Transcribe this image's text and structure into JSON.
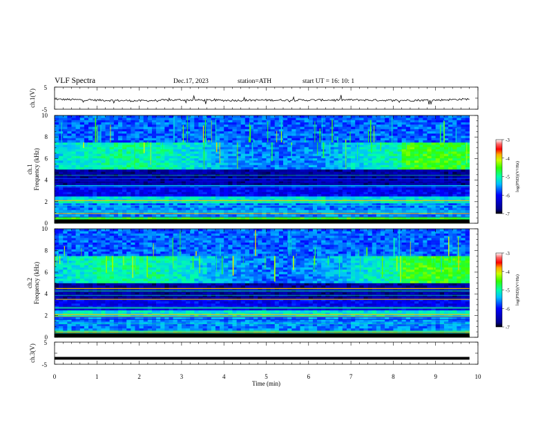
{
  "header": {
    "title": "VLF  Spectra",
    "date": "Dec.17, 2023",
    "station": "station=ATH",
    "start": "start  UT  =    16: 10: 1"
  },
  "colorbar": {
    "label": "log(PSD)(V²/Hz)",
    "ticks": [
      "-3",
      "-4",
      "-5",
      "-6",
      "-7"
    ]
  },
  "chart_data": [
    {
      "type": "line",
      "panel": "ch1-waveform",
      "ylabel": "ch.1(V)",
      "ylim": [
        -5,
        5
      ],
      "yticks": [
        "5",
        "-5"
      ],
      "x": [
        0,
        1,
        2,
        3,
        4,
        5,
        6,
        7,
        8,
        9,
        9.8
      ],
      "values": [
        -0.5,
        -0.9,
        -1.2,
        -0.8,
        -1.0,
        -0.9,
        -0.9,
        -0.8,
        -1.0,
        -0.9,
        -0.4
      ]
    },
    {
      "type": "heatmap",
      "panel": "ch1-spectrogram",
      "ylabel": "ch.1\nFrequency  (kHz)",
      "ylim": [
        0,
        10
      ],
      "yticks": [
        "10",
        "8",
        "6",
        "4",
        "2",
        "0"
      ],
      "zlabel": "log(PSD)(V²/Hz)",
      "zlim": [
        -7,
        -3
      ],
      "tonal_lines_khz": [
        2.1,
        0.9
      ]
    },
    {
      "type": "heatmap",
      "panel": "ch2-spectrogram",
      "ylabel": "ch.2\nFrequency  (kHz)",
      "ylim": [
        0,
        10
      ],
      "yticks": [
        "10",
        "8",
        "6",
        "4",
        "2",
        "0"
      ],
      "zlabel": "log(PSD)(V²/Hz)",
      "zlim": [
        -7,
        -3
      ],
      "tonal_lines_khz": [
        4.5,
        3.5,
        2.1,
        1.9,
        0.5
      ]
    },
    {
      "type": "line",
      "panel": "ch3-waveform",
      "ylabel": "ch.3(V)",
      "ylim": [
        -5,
        5
      ],
      "yticks": [
        "5",
        "-5"
      ],
      "x": [
        0,
        9.8
      ],
      "values": [
        -2.3,
        -2.3
      ]
    }
  ],
  "xaxis": {
    "label": "Time  (min)",
    "ticks": [
      "0",
      "1",
      "2",
      "3",
      "4",
      "5",
      "6",
      "7",
      "8",
      "9",
      "10"
    ],
    "xlim": [
      0,
      10
    ]
  }
}
